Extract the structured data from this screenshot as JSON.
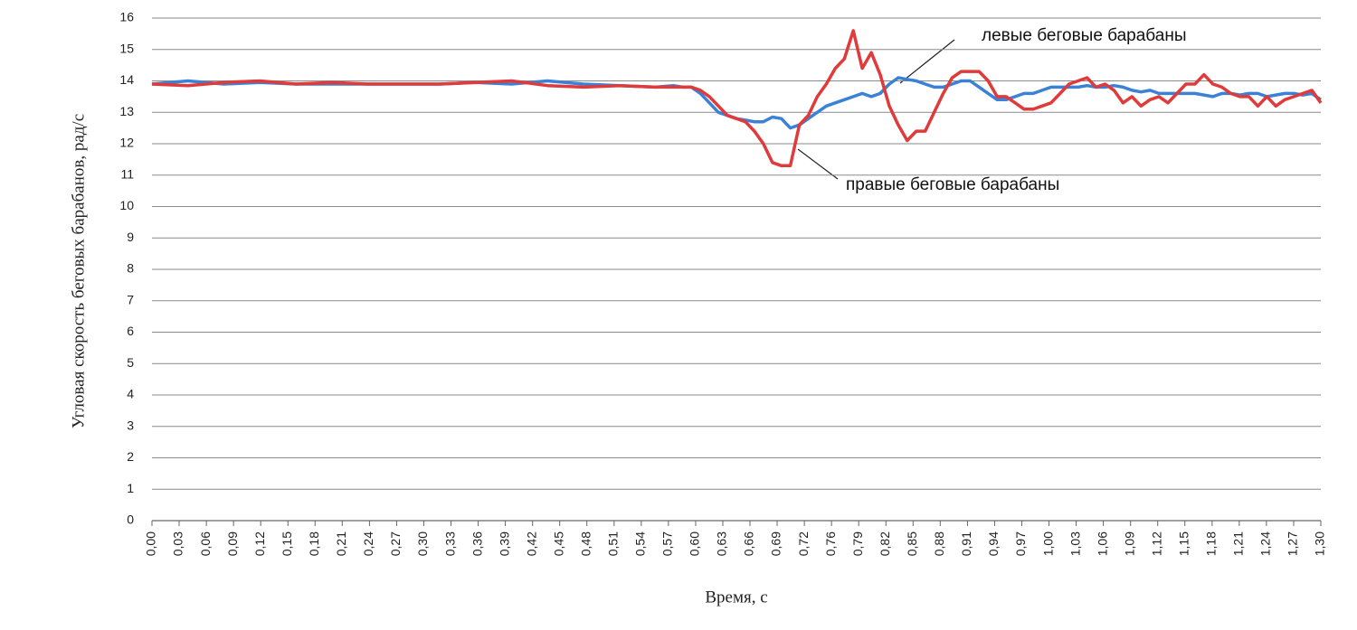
{
  "chart_data": {
    "type": "line",
    "y_label": "Угловая скорость беговых барабанов, рад/с",
    "x_label": "Время, с",
    "annotations": [
      "левые беговые барабаны",
      "правые беговые барабаны"
    ],
    "xlim": [
      0,
      1.3
    ],
    "xticks": [
      {
        "value": 0,
        "label": "0,00"
      },
      {
        "value": 0.0302,
        "label": "0,03"
      },
      {
        "value": 0.0605,
        "label": "0,06"
      },
      {
        "value": 0.0907,
        "label": "0,09"
      },
      {
        "value": 0.1209,
        "label": "0,12"
      },
      {
        "value": 0.1512,
        "label": "0,15"
      },
      {
        "value": 0.1814,
        "label": "0,18"
      },
      {
        "value": 0.2116,
        "label": "0,21"
      },
      {
        "value": 0.2419,
        "label": "0,24"
      },
      {
        "value": 0.2721,
        "label": "0,27"
      },
      {
        "value": 0.3023,
        "label": "0,30"
      },
      {
        "value": 0.3326,
        "label": "0,33"
      },
      {
        "value": 0.3628,
        "label": "0,36"
      },
      {
        "value": 0.393,
        "label": "0,39"
      },
      {
        "value": 0.4233,
        "label": "0,42"
      },
      {
        "value": 0.4535,
        "label": "0,45"
      },
      {
        "value": 0.4837,
        "label": "0,48"
      },
      {
        "value": 0.514,
        "label": "0,51"
      },
      {
        "value": 0.5442,
        "label": "0,54"
      },
      {
        "value": 0.5744,
        "label": "0,57"
      },
      {
        "value": 0.6047,
        "label": "0,60"
      },
      {
        "value": 0.6349,
        "label": "0,63"
      },
      {
        "value": 0.6651,
        "label": "0,66"
      },
      {
        "value": 0.6953,
        "label": "0,69"
      },
      {
        "value": 0.7256,
        "label": "0,72"
      },
      {
        "value": 0.7558,
        "label": "0,76"
      },
      {
        "value": 0.786,
        "label": "0,79"
      },
      {
        "value": 0.8163,
        "label": "0,82"
      },
      {
        "value": 0.8465,
        "label": "0,85"
      },
      {
        "value": 0.8767,
        "label": "0,88"
      },
      {
        "value": 0.907,
        "label": "0,91"
      },
      {
        "value": 0.9372,
        "label": "0,94"
      },
      {
        "value": 0.9674,
        "label": "0,97"
      },
      {
        "value": 0.9977,
        "label": "1,00"
      },
      {
        "value": 1.0279,
        "label": "1,03"
      },
      {
        "value": 1.0581,
        "label": "1,06"
      },
      {
        "value": 1.0884,
        "label": "1,09"
      },
      {
        "value": 1.1186,
        "label": "1,12"
      },
      {
        "value": 1.1488,
        "label": "1,15"
      },
      {
        "value": 1.1791,
        "label": "1,18"
      },
      {
        "value": 1.2093,
        "label": "1,21"
      },
      {
        "value": 1.2395,
        "label": "1,24"
      },
      {
        "value": 1.2698,
        "label": "1,27"
      },
      {
        "value": 1.3,
        "label": "1,30"
      }
    ],
    "ylim": [
      0,
      16
    ],
    "yticks": [
      0,
      1,
      2,
      3,
      4,
      5,
      6,
      7,
      8,
      9,
      10,
      11,
      12,
      13,
      14,
      15,
      16
    ],
    "grid": true,
    "x": [
      0,
      0.04,
      0.08,
      0.12,
      0.16,
      0.2,
      0.24,
      0.28,
      0.32,
      0.36,
      0.4,
      0.44,
      0.48,
      0.52,
      0.56,
      0.58,
      0.59,
      0.6,
      0.61,
      0.62,
      0.63,
      0.64,
      0.65,
      0.66,
      0.67,
      0.68,
      0.69,
      0.7,
      0.71,
      0.72,
      0.73,
      0.74,
      0.75,
      0.76,
      0.77,
      0.78,
      0.79,
      0.8,
      0.81,
      0.82,
      0.83,
      0.84,
      0.85,
      0.86,
      0.87,
      0.88,
      0.89,
      0.9,
      0.91,
      0.92,
      0.93,
      0.94,
      0.95,
      0.96,
      0.97,
      0.98,
      0.99,
      1.0,
      1.01,
      1.02,
      1.03,
      1.04,
      1.05,
      1.06,
      1.07,
      1.08,
      1.09,
      1.1,
      1.11,
      1.12,
      1.13,
      1.14,
      1.15,
      1.16,
      1.17,
      1.18,
      1.19,
      1.2,
      1.21,
      1.22,
      1.23,
      1.24,
      1.25,
      1.26,
      1.27,
      1.28,
      1.29,
      1.3
    ],
    "series": [
      {
        "color": "#3b82d6",
        "values": [
          13.9,
          14.0,
          13.9,
          13.95,
          13.9,
          13.9,
          13.9,
          13.9,
          13.9,
          13.95,
          13.9,
          14.0,
          13.9,
          13.85,
          13.8,
          13.85,
          13.8,
          13.8,
          13.6,
          13.3,
          13.0,
          12.9,
          12.8,
          12.75,
          12.7,
          12.7,
          12.85,
          12.8,
          12.5,
          12.6,
          12.8,
          13.0,
          13.2,
          13.3,
          13.4,
          13.5,
          13.6,
          13.5,
          13.6,
          13.9,
          14.1,
          14.05,
          14.0,
          13.9,
          13.8,
          13.8,
          13.9,
          14.0,
          14.0,
          13.8,
          13.6,
          13.4,
          13.4,
          13.5,
          13.6,
          13.6,
          13.7,
          13.8,
          13.8,
          13.8,
          13.8,
          13.85,
          13.8,
          13.8,
          13.85,
          13.8,
          13.7,
          13.65,
          13.7,
          13.6,
          13.6,
          13.6,
          13.6,
          13.6,
          13.55,
          13.5,
          13.6,
          13.6,
          13.55,
          13.6,
          13.6,
          13.5,
          13.55,
          13.6,
          13.6,
          13.55,
          13.6,
          13.4
        ]
      },
      {
        "color": "#e03a3a",
        "values": [
          13.9,
          13.85,
          13.95,
          14.0,
          13.9,
          13.95,
          13.9,
          13.9,
          13.9,
          13.95,
          14.0,
          13.85,
          13.8,
          13.85,
          13.8,
          13.8,
          13.8,
          13.8,
          13.7,
          13.5,
          13.2,
          12.9,
          12.8,
          12.7,
          12.4,
          12.0,
          11.4,
          11.3,
          11.3,
          12.6,
          12.9,
          13.5,
          13.9,
          14.4,
          14.7,
          15.6,
          14.4,
          14.9,
          14.2,
          13.2,
          12.6,
          12.1,
          12.4,
          12.4,
          13.0,
          13.6,
          14.1,
          14.3,
          14.3,
          14.3,
          14.0,
          13.5,
          13.5,
          13.3,
          13.1,
          13.1,
          13.2,
          13.3,
          13.6,
          13.9,
          14.0,
          14.1,
          13.8,
          13.9,
          13.7,
          13.3,
          13.5,
          13.2,
          13.4,
          13.5,
          13.3,
          13.6,
          13.9,
          13.9,
          14.2,
          13.9,
          13.8,
          13.6,
          13.5,
          13.5,
          13.2,
          13.5,
          13.2,
          13.4,
          13.5,
          13.6,
          13.7,
          13.3
        ]
      }
    ]
  }
}
